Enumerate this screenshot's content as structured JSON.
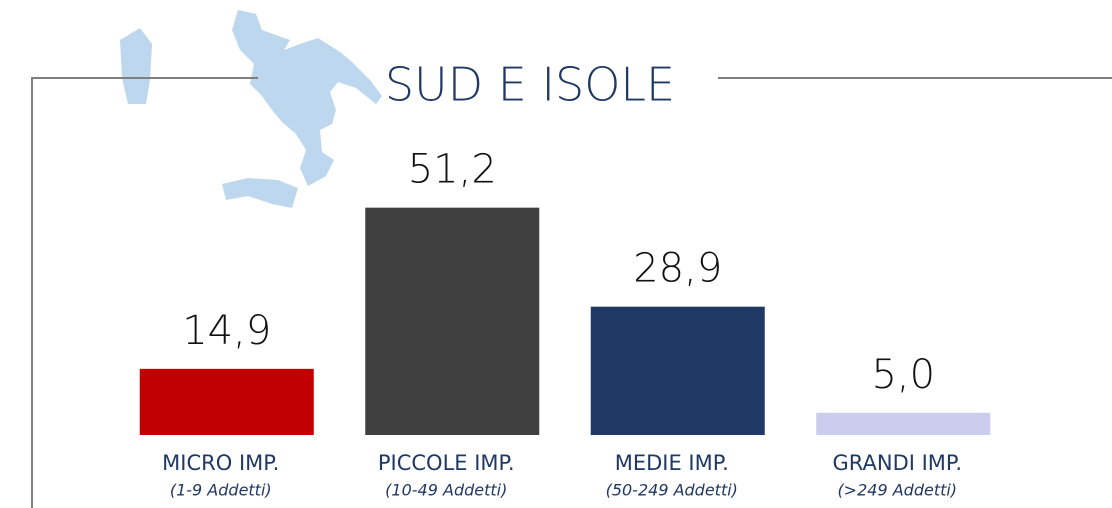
{
  "chart_data": {
    "type": "bar",
    "title": "SUD E ISOLE",
    "categories": [
      "MICRO IMP.",
      "PICCOLE IMP.",
      "MEDIE IMP.",
      "GRANDI IMP."
    ],
    "category_notes": [
      "(1-9 Addetti)",
      "(10-49 Addetti)",
      "(50-249 Addetti)",
      "(>249 Addetti)"
    ],
    "values": [
      14.9,
      51.2,
      28.9,
      5.0
    ],
    "value_labels": [
      "14,9",
      "51,2",
      "28,9",
      "5,0"
    ],
    "colors": [
      "#c00000",
      "#404040",
      "#1f3864",
      "#ccccee"
    ]
  }
}
